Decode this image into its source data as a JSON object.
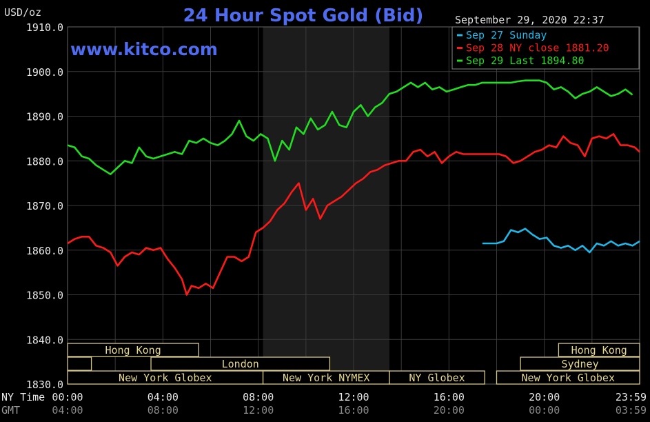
{
  "chart_data": {
    "type": "line",
    "title": "24 Hour Spot Gold (Bid)",
    "unit_label": "USD/oz",
    "watermark": "www.kitco.com",
    "timestamp": "September 29, 2020 22:37",
    "ylim": [
      1830,
      1910
    ],
    "yticks": [
      "1910.0",
      "1900.0",
      "1890.0",
      "1880.0",
      "1870.0",
      "1860.0",
      "1850.0",
      "1840.0",
      "1830.0"
    ],
    "xlim": [
      0,
      24
    ],
    "ny_time_label": "NY Time",
    "gmt_label": "GMT",
    "ny_ticks": [
      {
        "t": 0,
        "label": "00:00"
      },
      {
        "t": 4,
        "label": "04:00"
      },
      {
        "t": 8,
        "label": "08:00"
      },
      {
        "t": 12,
        "label": "12:00"
      },
      {
        "t": 16,
        "label": "16:00"
      },
      {
        "t": 20,
        "label": "20:00"
      },
      {
        "t": 23.983,
        "label": "23:59"
      }
    ],
    "gmt_ticks": [
      {
        "t": 0,
        "label": "04:00"
      },
      {
        "t": 4,
        "label": "08:00"
      },
      {
        "t": 8,
        "label": "12:00"
      },
      {
        "t": 12,
        "label": "16:00"
      },
      {
        "t": 16,
        "label": "20:00"
      },
      {
        "t": 20,
        "label": "00:00"
      },
      {
        "t": 23.983,
        "label": "03:59"
      }
    ],
    "nymex_shade": [
      8.2,
      13.5
    ],
    "legend": [
      {
        "label": "Sep 27 Sunday",
        "color": "#1fb8e8"
      },
      {
        "label": "Sep 28 NY close 1881.20",
        "color": "#ff1a1a"
      },
      {
        "label": "Sep 29 Last 1894.80",
        "color": "#22dd22"
      }
    ],
    "sessions": [
      {
        "row": 0,
        "start": 0,
        "end": 5.5,
        "label": "Hong Kong"
      },
      {
        "row": 0,
        "start": 20.6,
        "end": 24,
        "label": "Hong Kong"
      },
      {
        "row": 1,
        "start": 0,
        "end": 1,
        "label": ""
      },
      {
        "row": 1,
        "start": 3.5,
        "end": 11,
        "label": "London"
      },
      {
        "row": 1,
        "start": 19,
        "end": 24,
        "label": "Sydney"
      },
      {
        "row": 2,
        "start": 0,
        "end": 8.2,
        "label": "New York Globex"
      },
      {
        "row": 2,
        "start": 8.2,
        "end": 13.5,
        "label": "New York NYMEX"
      },
      {
        "row": 2,
        "start": 13.5,
        "end": 17.5,
        "label": "NY Globex"
      },
      {
        "row": 2,
        "start": 18,
        "end": 24,
        "label": "New York Globex"
      }
    ],
    "series": [
      {
        "name": "Sep 27 Sunday",
        "color": "#1fb8e8",
        "x": [
          17.4,
          18.0,
          18.3,
          18.6,
          18.9,
          19.2,
          19.5,
          19.8,
          20.1,
          20.4,
          20.7,
          21.0,
          21.3,
          21.6,
          21.9,
          22.2,
          22.5,
          22.8,
          23.1,
          23.4,
          23.7,
          24.0
        ],
        "y": [
          1861.5,
          1861.5,
          1862.0,
          1864.5,
          1864.0,
          1864.8,
          1863.5,
          1862.5,
          1862.8,
          1861.0,
          1860.5,
          1861.0,
          1860.0,
          1861.0,
          1859.5,
          1861.5,
          1861.0,
          1862.0,
          1861.0,
          1861.5,
          1861.0,
          1862.0
        ]
      },
      {
        "name": "Sep 28",
        "color": "#ff1a1a",
        "x": [
          0,
          0.3,
          0.6,
          0.9,
          1.2,
          1.5,
          1.8,
          2.1,
          2.4,
          2.7,
          3.0,
          3.3,
          3.6,
          3.9,
          4.2,
          4.5,
          4.8,
          5.0,
          5.2,
          5.5,
          5.8,
          6.1,
          6.4,
          6.7,
          7.0,
          7.3,
          7.6,
          7.9,
          8.2,
          8.5,
          8.8,
          9.1,
          9.4,
          9.7,
          10.0,
          10.3,
          10.6,
          10.9,
          11.2,
          11.5,
          11.8,
          12.1,
          12.4,
          12.7,
          13.0,
          13.3,
          13.6,
          13.9,
          14.2,
          14.5,
          14.8,
          15.1,
          15.4,
          15.7,
          16.0,
          16.3,
          16.6,
          16.9,
          17.2,
          17.5,
          17.8,
          18.1,
          18.4,
          18.7,
          19.0,
          19.3,
          19.6,
          19.9,
          20.2,
          20.5,
          20.8,
          21.1,
          21.4,
          21.7,
          22.0,
          22.3,
          22.6,
          22.9,
          23.2,
          23.5,
          23.8,
          24.0
        ],
        "y": [
          1861.5,
          1862.5,
          1863.0,
          1863.0,
          1861.0,
          1860.5,
          1859.5,
          1856.5,
          1858.5,
          1859.5,
          1859.0,
          1860.5,
          1860.0,
          1860.5,
          1858.0,
          1856.0,
          1853.5,
          1850.0,
          1852.0,
          1851.5,
          1852.5,
          1851.5,
          1855.0,
          1858.5,
          1858.5,
          1857.5,
          1858.5,
          1864.0,
          1865.0,
          1866.5,
          1869.0,
          1870.5,
          1873.0,
          1875.0,
          1869.0,
          1871.5,
          1867.0,
          1870.0,
          1871.0,
          1872.0,
          1873.5,
          1875.0,
          1876.0,
          1877.5,
          1878.0,
          1879.0,
          1879.5,
          1880.0,
          1880.0,
          1882.0,
          1882.5,
          1881.0,
          1882.0,
          1879.5,
          1881.0,
          1882.0,
          1881.5,
          1881.5,
          1881.5,
          1881.5,
          1881.5,
          1881.5,
          1881.0,
          1879.5,
          1880.0,
          1881.0,
          1882.0,
          1882.5,
          1883.5,
          1883.0,
          1885.5,
          1884.0,
          1883.5,
          1881.0,
          1885.0,
          1885.5,
          1885.0,
          1886.0,
          1883.5,
          1883.5,
          1883.0,
          1882.0
        ]
      },
      {
        "name": "Sep 29",
        "color": "#22dd22",
        "x": [
          0,
          0.3,
          0.6,
          0.9,
          1.2,
          1.5,
          1.8,
          2.1,
          2.4,
          2.7,
          3.0,
          3.3,
          3.6,
          3.9,
          4.2,
          4.5,
          4.8,
          5.1,
          5.4,
          5.7,
          6.0,
          6.3,
          6.6,
          6.9,
          7.2,
          7.5,
          7.8,
          8.1,
          8.4,
          8.7,
          9.0,
          9.3,
          9.6,
          9.9,
          10.2,
          10.5,
          10.8,
          11.1,
          11.4,
          11.7,
          12.0,
          12.3,
          12.6,
          12.9,
          13.2,
          13.5,
          13.8,
          14.1,
          14.4,
          14.7,
          15.0,
          15.3,
          15.6,
          15.9,
          16.2,
          16.5,
          16.8,
          17.1,
          17.4,
          17.7,
          18.0,
          18.3,
          18.6,
          18.9,
          19.2,
          19.5,
          19.8,
          20.1,
          20.4,
          20.7,
          21.0,
          21.3,
          21.6,
          21.9,
          22.2,
          22.5,
          22.8,
          23.1,
          23.4,
          23.7
        ],
        "y": [
          1883.5,
          1883.0,
          1881.0,
          1880.5,
          1879.0,
          1878.0,
          1877.0,
          1878.5,
          1880.0,
          1879.5,
          1883.0,
          1881.0,
          1880.5,
          1881.0,
          1881.5,
          1882.0,
          1881.5,
          1884.5,
          1884.0,
          1885.0,
          1884.0,
          1883.5,
          1884.5,
          1886.0,
          1889.0,
          1885.5,
          1884.5,
          1886.0,
          1885.0,
          1880.0,
          1884.5,
          1882.5,
          1887.5,
          1886.0,
          1889.5,
          1887.0,
          1888.0,
          1891.0,
          1888.0,
          1887.5,
          1891.0,
          1892.5,
          1890.0,
          1892.0,
          1893.0,
          1895.0,
          1895.5,
          1896.5,
          1897.5,
          1896.5,
          1897.5,
          1896.0,
          1896.5,
          1895.5,
          1896.0,
          1896.5,
          1897.0,
          1897.0,
          1897.5,
          1897.5,
          1897.5,
          1897.5,
          1897.5,
          1897.8,
          1898.0,
          1898.0,
          1898.0,
          1897.5,
          1896.0,
          1896.5,
          1895.5,
          1894.0,
          1895.0,
          1895.5,
          1896.5,
          1895.5,
          1894.5,
          1895.0,
          1896.0,
          1894.8
        ]
      }
    ]
  }
}
